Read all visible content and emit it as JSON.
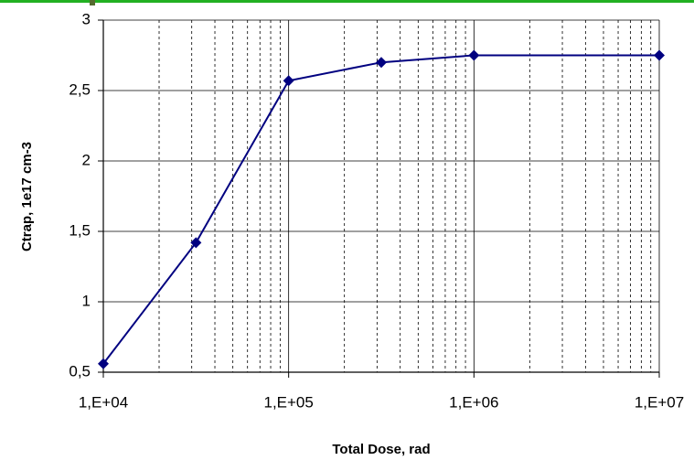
{
  "chart_data": {
    "type": "line",
    "xlabel": "Total Dose, rad",
    "ylabel": "Ctrap, 1e17 cm-3",
    "xscale": "log",
    "grid": true,
    "x": [
      10000,
      31623,
      100000,
      316228,
      1000000,
      10000000
    ],
    "series": [
      {
        "name": "Ctrap",
        "color": "#000080",
        "values": [
          0.56,
          1.42,
          2.57,
          2.7,
          2.75,
          2.75
        ]
      }
    ],
    "xlim": [
      10000,
      10000000
    ],
    "xticks": [
      {
        "value": 10000,
        "label": "1,E+04"
      },
      {
        "value": 100000,
        "label": "1,E+05"
      },
      {
        "value": 1000000,
        "label": "1,E+06"
      },
      {
        "value": 10000000,
        "label": "1,E+07"
      }
    ],
    "ylim": [
      0.5,
      3
    ],
    "yticks": [
      {
        "value": 0.5,
        "label": "0,5"
      },
      1,
      {
        "value": 1.5,
        "label": "1,5"
      },
      2,
      {
        "value": 2.5,
        "label": "2,5"
      },
      3
    ]
  }
}
